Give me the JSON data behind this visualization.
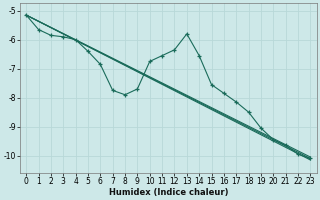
{
  "xlabel": "Humidex (Indice chaleur)",
  "bg_color": "#cde8e8",
  "line_color": "#1a6b5a",
  "grid_color": "#b8d8d8",
  "xlim": [
    -0.5,
    23.5
  ],
  "ylim": [
    -10.6,
    -4.75
  ],
  "xticks": [
    0,
    1,
    2,
    3,
    4,
    5,
    6,
    7,
    8,
    9,
    10,
    11,
    12,
    13,
    14,
    15,
    16,
    17,
    18,
    19,
    20,
    21,
    22,
    23
  ],
  "yticks": [
    -5,
    -6,
    -7,
    -8,
    -9,
    -10
  ],
  "wiggly_x": [
    0,
    1,
    2,
    3,
    4,
    5,
    6,
    7,
    8,
    9,
    10,
    11,
    12,
    13,
    14,
    15,
    16,
    17,
    18,
    19,
    20,
    21,
    22,
    23
  ],
  "wiggly_y": [
    -5.15,
    -5.65,
    -5.85,
    -5.9,
    -6.0,
    -6.4,
    -6.85,
    -7.75,
    -7.9,
    -7.7,
    -6.75,
    -6.55,
    -6.35,
    -5.8,
    -6.55,
    -7.55,
    -7.85,
    -8.15,
    -8.5,
    -9.05,
    -9.45,
    -9.65,
    -9.95,
    -10.1
  ],
  "straight_lines": [
    {
      "x": [
        0,
        23
      ],
      "y": [
        -5.15,
        -10.05
      ]
    },
    {
      "x": [
        0,
        23
      ],
      "y": [
        -5.15,
        -10.1
      ]
    },
    {
      "x": [
        0,
        23
      ],
      "y": [
        -5.15,
        -10.15
      ]
    }
  ],
  "tick_fontsize": 5.5,
  "xlabel_fontsize": 6.0
}
